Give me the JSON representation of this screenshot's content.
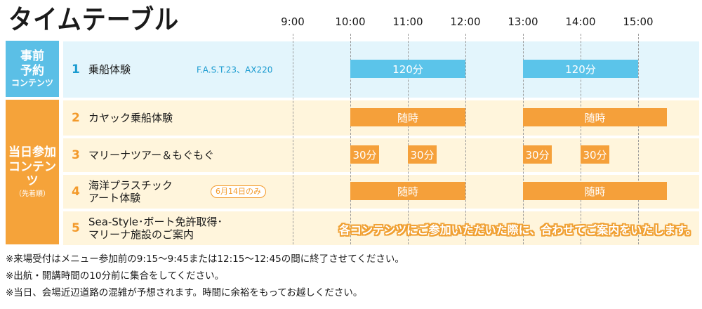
{
  "title": "タイムテーブル",
  "groups": [
    {
      "id": "g1",
      "title_lines": [
        "事前",
        "予約"
      ],
      "subtitle": "コンテンツ",
      "note": "",
      "color": "#5bbfe6"
    },
    {
      "id": "g2",
      "title_lines": [
        "当日参加"
      ],
      "subtitle": "コンテンツ",
      "note": "（先着順）",
      "color": "#f5a33a"
    }
  ],
  "rows": [
    {
      "num": "1",
      "label_lines": [
        "乗船体験"
      ],
      "sub": "F.A.S.T.23、AX220",
      "badge": ""
    },
    {
      "num": "2",
      "label_lines": [
        "カヤック乗船体験"
      ],
      "sub": "",
      "badge": ""
    },
    {
      "num": "3",
      "label_lines": [
        "マリーナツアー＆もぐもぐ"
      ],
      "sub": "",
      "badge": ""
    },
    {
      "num": "4",
      "label_lines": [
        "海洋プラスチック",
        "アート体験"
      ],
      "sub": "",
      "badge": "6月14日のみ"
    },
    {
      "num": "5",
      "label_lines": [
        "Sea-Style･ボート免許取得･",
        "マリーナ施設のご案内"
      ],
      "sub": "",
      "badge": ""
    }
  ],
  "banner": "各コンテンツにご参加いただいた際に、合わせてご案内をいたします。",
  "notes": [
    "※来場受付はメニュー参加前の9:15～9:45または12:15～12:45の間に終了させてください。",
    "※出航・開講時間の10分前に集合をしてください。",
    "※当日、会場近辺道路の混雑が予想されます。時間に余裕をもってお越しください。"
  ],
  "colors": {
    "blue": "#5bc4ea",
    "orange": "#f5a03a",
    "text": "#1a1a1a"
  },
  "chart_data": {
    "type": "bar",
    "orientation": "horizontal-timeline",
    "title": "タイムテーブル",
    "x_ticks": [
      "9:00",
      "10:00",
      "11:00",
      "12:00",
      "13:00",
      "14:00",
      "15:00"
    ],
    "x_range": [
      "8:30",
      "15:55"
    ],
    "grid": true,
    "categories": [
      "1",
      "2",
      "3",
      "4",
      "5"
    ],
    "bars": [
      {
        "row": 1,
        "start": "10:00",
        "end": "12:00",
        "label": "120分",
        "color": "blue"
      },
      {
        "row": 1,
        "start": "13:00",
        "end": "15:00",
        "label": "120分",
        "color": "blue"
      },
      {
        "row": 2,
        "start": "10:00",
        "end": "12:00",
        "label": "随時",
        "color": "orange"
      },
      {
        "row": 2,
        "start": "13:00",
        "end": "15:30",
        "label": "随時",
        "color": "orange"
      },
      {
        "row": 3,
        "start": "10:00",
        "end": "10:30",
        "label": "30分",
        "color": "orange"
      },
      {
        "row": 3,
        "start": "11:00",
        "end": "11:30",
        "label": "30分",
        "color": "orange"
      },
      {
        "row": 3,
        "start": "13:00",
        "end": "13:30",
        "label": "30分",
        "color": "orange"
      },
      {
        "row": 3,
        "start": "14:00",
        "end": "14:30",
        "label": "30分",
        "color": "orange"
      },
      {
        "row": 4,
        "start": "10:00",
        "end": "12:00",
        "label": "随時",
        "color": "orange"
      },
      {
        "row": 4,
        "start": "13:00",
        "end": "15:30",
        "label": "随時",
        "color": "orange"
      }
    ]
  }
}
